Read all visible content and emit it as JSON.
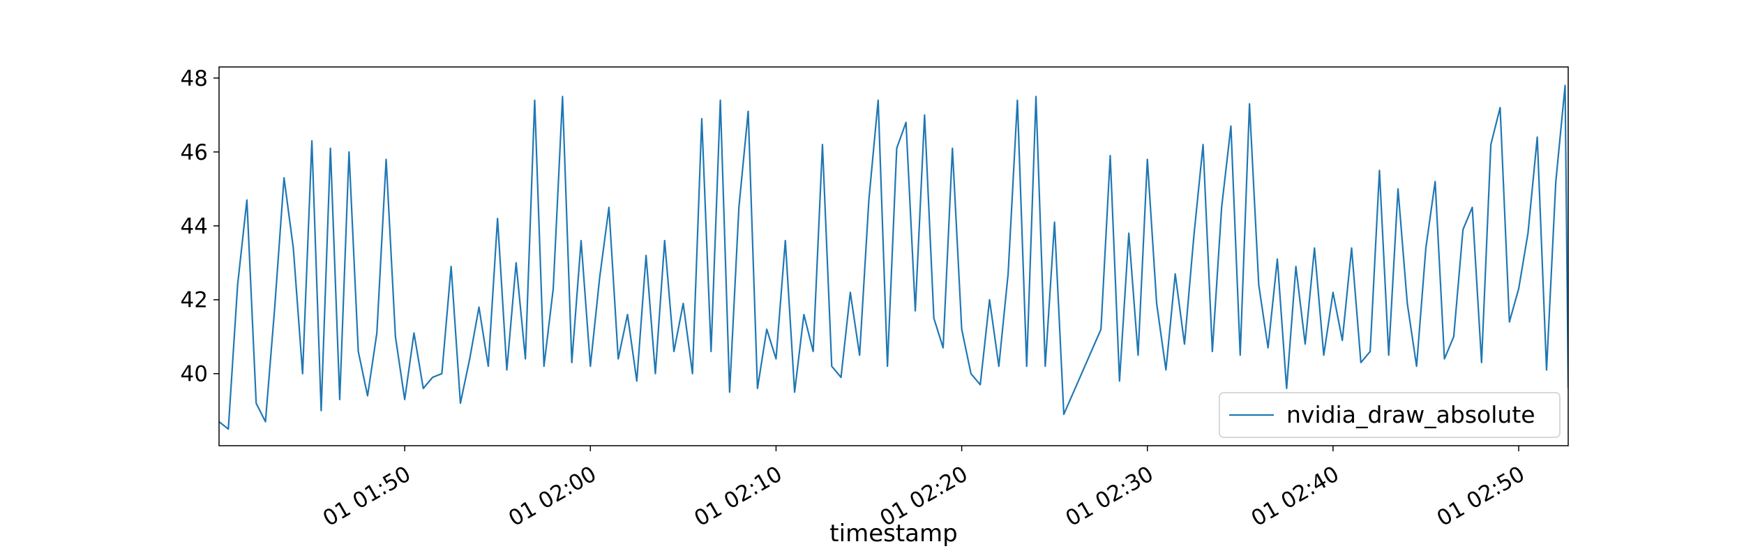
{
  "chart_data": {
    "type": "line",
    "x_label": "timestamp",
    "x": [
      "01 01:40:00",
      "01 01:40:30",
      "01 01:41:00",
      "01 01:41:30",
      "01 01:42:00",
      "01 01:42:30",
      "01 01:43:00",
      "01 01:43:30",
      "01 01:44:00",
      "01 01:44:30",
      "01 01:45:00",
      "01 01:45:30",
      "01 01:46:00",
      "01 01:46:30",
      "01 01:47:00",
      "01 01:47:30",
      "01 01:48:00",
      "01 01:48:30",
      "01 01:49:00",
      "01 01:49:30",
      "01 01:50:00",
      "01 01:50:30",
      "01 01:51:00",
      "01 01:51:30",
      "01 01:52:00",
      "01 01:52:30",
      "01 01:53:00",
      "01 01:53:30",
      "01 01:54:00",
      "01 01:54:30",
      "01 01:55:00",
      "01 01:55:30",
      "01 01:56:00",
      "01 01:56:30",
      "01 01:57:00",
      "01 01:57:30",
      "01 01:58:00",
      "01 01:58:30",
      "01 01:59:00",
      "01 01:59:30",
      "01 02:00:00",
      "01 02:00:30",
      "01 02:01:00",
      "01 02:01:30",
      "01 02:02:00",
      "01 02:02:30",
      "01 02:03:00",
      "01 02:03:30",
      "01 02:04:00",
      "01 02:04:30",
      "01 02:05:00",
      "01 02:05:30",
      "01 02:06:00",
      "01 02:06:30",
      "01 02:07:00",
      "01 02:07:30",
      "01 02:08:00",
      "01 02:08:30",
      "01 02:09:00",
      "01 02:09:30",
      "01 02:10:00",
      "01 02:10:30",
      "01 02:11:00",
      "01 02:11:30",
      "01 02:12:00",
      "01 02:12:30",
      "01 02:13:00",
      "01 02:13:30",
      "01 02:14:00",
      "01 02:14:30",
      "01 02:15:00",
      "01 02:15:30",
      "01 02:16:00",
      "01 02:16:30",
      "01 02:17:00",
      "01 02:17:30",
      "01 02:18:00",
      "01 02:18:30",
      "01 02:19:00",
      "01 02:19:30",
      "01 02:20:00",
      "01 02:20:30",
      "01 02:21:00",
      "01 02:21:30",
      "01 02:22:00",
      "01 02:22:30",
      "01 02:23:00",
      "01 02:23:30",
      "01 02:24:00",
      "01 02:24:30",
      "01 02:25:00",
      "01 02:25:30",
      "01 02:27:30",
      "01 02:28:00",
      "01 02:28:30",
      "01 02:29:00",
      "01 02:29:30",
      "01 02:30:00",
      "01 02:30:30",
      "01 02:31:00",
      "01 02:31:30",
      "01 02:32:00",
      "01 02:32:30",
      "01 02:33:00",
      "01 02:33:30",
      "01 02:34:00",
      "01 02:34:30",
      "01 02:35:00",
      "01 02:35:30",
      "01 02:36:00",
      "01 02:36:30",
      "01 02:37:00",
      "01 02:37:30",
      "01 02:38:00",
      "01 02:38:30",
      "01 02:39:00",
      "01 02:39:30",
      "01 02:40:00",
      "01 02:40:30",
      "01 02:41:00",
      "01 02:41:30",
      "01 02:42:00",
      "01 02:42:30",
      "01 02:43:00",
      "01 02:43:30",
      "01 02:44:00",
      "01 02:44:30",
      "01 02:45:00",
      "01 02:45:30",
      "01 02:46:00",
      "01 02:46:30",
      "01 02:47:00",
      "01 02:47:30",
      "01 02:48:00",
      "01 02:48:30",
      "01 02:49:00",
      "01 02:49:30",
      "01 02:50:00",
      "01 02:50:30",
      "01 02:51:00",
      "01 02:51:30",
      "01 02:52:00",
      "01 02:52:30",
      "01 02:52:40"
    ],
    "series": [
      {
        "name": "nvidia_draw_absolute",
        "color": "#1f77b4",
        "values": [
          38.7,
          38.5,
          42.4,
          44.7,
          39.2,
          38.7,
          41.8,
          45.3,
          43.4,
          40.0,
          46.3,
          39.0,
          46.1,
          39.3,
          46.0,
          40.6,
          39.4,
          41.1,
          45.8,
          41.0,
          39.3,
          41.1,
          39.6,
          39.9,
          40.0,
          42.9,
          39.2,
          40.4,
          41.8,
          40.2,
          44.2,
          40.1,
          43.0,
          40.4,
          47.4,
          40.2,
          42.3,
          47.5,
          40.3,
          43.6,
          40.2,
          42.6,
          44.5,
          40.4,
          41.6,
          39.8,
          43.2,
          40.0,
          43.6,
          40.6,
          41.9,
          40.0,
          46.9,
          40.6,
          47.4,
          39.5,
          44.5,
          47.1,
          39.6,
          41.2,
          40.4,
          43.6,
          39.5,
          41.6,
          40.6,
          46.2,
          40.2,
          39.9,
          42.2,
          40.5,
          44.7,
          47.4,
          40.2,
          46.1,
          46.8,
          41.7,
          47.0,
          41.5,
          40.7,
          46.1,
          41.2,
          40.0,
          39.7,
          42.0,
          40.2,
          42.7,
          47.4,
          40.2,
          47.5,
          40.2,
          44.1,
          38.9,
          41.2,
          45.9,
          39.8,
          43.8,
          40.5,
          45.8,
          41.9,
          40.1,
          42.7,
          40.8,
          43.7,
          46.2,
          40.6,
          44.5,
          46.7,
          40.5,
          47.3,
          42.4,
          40.7,
          43.1,
          39.6,
          42.9,
          40.8,
          43.4,
          40.5,
          42.2,
          40.9,
          43.4,
          40.3,
          40.6,
          45.5,
          40.5,
          45.0,
          41.9,
          40.2,
          43.4,
          45.2,
          40.4,
          41.0,
          43.9,
          44.5,
          40.3,
          46.2,
          47.2,
          41.4,
          42.3,
          43.8,
          46.4,
          40.1,
          45.2,
          47.8,
          39.6
        ]
      }
    ],
    "xlim": [
      "01 01:40:00",
      "01 02:52:40"
    ],
    "xticks": [
      {
        "value": "01 01:50:00",
        "label": "01 01:50"
      },
      {
        "value": "01 02:00:00",
        "label": "01 02:00"
      },
      {
        "value": "01 02:10:00",
        "label": "01 02:10"
      },
      {
        "value": "01 02:20:00",
        "label": "01 02:20"
      },
      {
        "value": "01 02:30:00",
        "label": "01 02:30"
      },
      {
        "value": "01 02:40:00",
        "label": "01 02:40"
      },
      {
        "value": "01 02:50:00",
        "label": "01 02:50"
      }
    ],
    "ylim": [
      38.05,
      48.3
    ],
    "yticks": [
      40,
      42,
      44,
      46,
      48
    ],
    "legend": "lower right"
  }
}
